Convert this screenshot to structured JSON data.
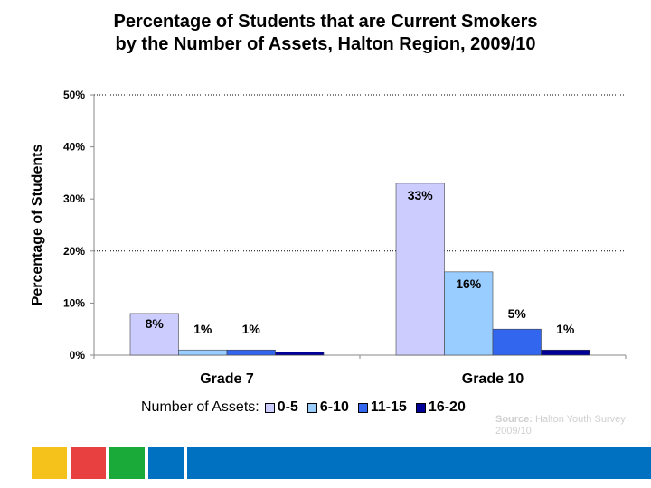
{
  "title_line1": "Percentage of Students that are Current Smokers",
  "title_line2": "by the Number of Assets, Halton Region, 2009/10",
  "legend_title": "Number of Assets:",
  "source_label": "Source:",
  "source_text": "Halton Youth Survey 2009/10",
  "chart_data": {
    "type": "bar",
    "title": "Percentage of Students that are Current Smokers by the Number of Assets, Halton Region, 2009/10",
    "ylabel": "Percentage of Students",
    "xlabel": "",
    "ylim": [
      0,
      50
    ],
    "yticks": [
      0,
      10,
      20,
      30,
      40,
      50
    ],
    "ytick_labels": [
      "0%",
      "10%",
      "20%",
      "30%",
      "40%",
      "50%"
    ],
    "gridlines": [
      20,
      50
    ],
    "categories": [
      "Grade 7",
      "Grade 10"
    ],
    "series": [
      {
        "name": "0-5",
        "values": [
          8,
          33
        ],
        "labels": [
          "8%",
          "33%"
        ],
        "color": "#ccccff"
      },
      {
        "name": "6-10",
        "values": [
          1,
          16
        ],
        "labels": [
          "1%",
          "16%"
        ],
        "color": "#99ccff"
      },
      {
        "name": "11-15",
        "values": [
          1,
          5
        ],
        "labels": [
          "1%",
          "5%"
        ],
        "color": "#3366ee"
      },
      {
        "name": "16-20",
        "values": [
          0.6,
          1
        ],
        "labels": [
          "",
          "1%"
        ],
        "color": "#000099"
      }
    ],
    "legend": "bottom"
  },
  "footer_colors": [
    "#f5c21b",
    "#e84040",
    "#1aaa3a",
    "#0070c0",
    "#0070c0"
  ]
}
